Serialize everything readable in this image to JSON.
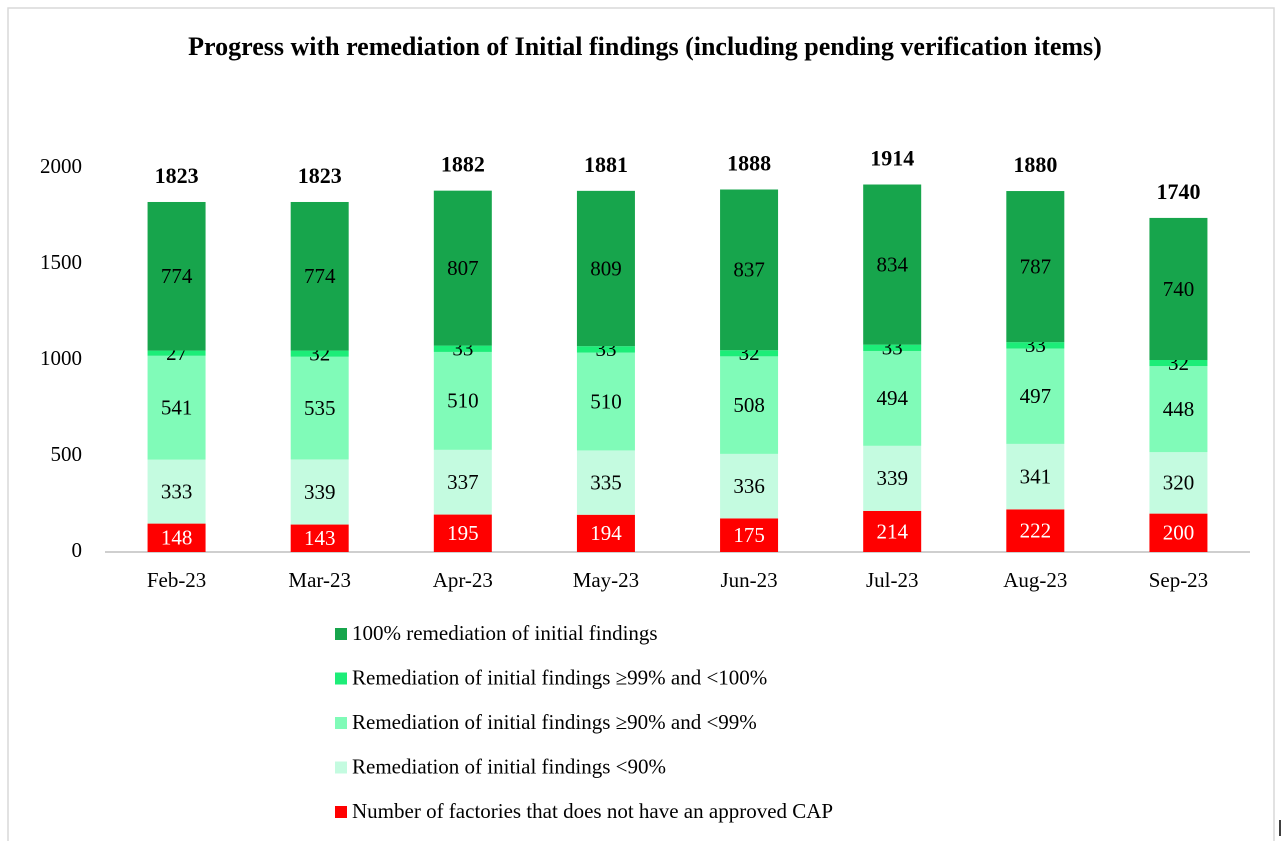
{
  "chart_data": {
    "type": "stacked_bar",
    "title": "Progress with remediation of Initial findings (including pending verification items)",
    "categories": [
      "Feb-23",
      "Mar-23",
      "Apr-23",
      "May-23",
      "Jun-23",
      "Jul-23",
      "Aug-23",
      "Sep-23"
    ],
    "series": [
      {
        "name": "Number of factories that does not have an approved CAP",
        "color": "#ff0000",
        "values": [
          148,
          143,
          195,
          194,
          175,
          214,
          222,
          200
        ]
      },
      {
        "name": "Remediation of initial findings <90%",
        "color": "#c4fbe0",
        "values": [
          333,
          339,
          337,
          335,
          336,
          339,
          341,
          320
        ]
      },
      {
        "name": "Remediation of initial findings ≥90% and <99%",
        "color": "#80fbb8",
        "values": [
          541,
          535,
          510,
          510,
          508,
          494,
          497,
          448
        ]
      },
      {
        "name": "Remediation of initial findings ≥99% and <100%",
        "color": "#1ded78",
        "values": [
          27,
          32,
          33,
          33,
          32,
          33,
          33,
          32
        ]
      },
      {
        "name": "100% remediation of initial findings",
        "color": "#17a54c",
        "values": [
          774,
          774,
          807,
          809,
          837,
          834,
          787,
          740
        ]
      }
    ],
    "totals": [
      1823,
      1823,
      1882,
      1881,
      1888,
      1914,
      1880,
      1740
    ],
    "ylim": [
      0,
      2000
    ],
    "yticks": [
      0,
      500,
      1000,
      1500,
      2000
    ],
    "grid": false,
    "legend": "bottom"
  }
}
